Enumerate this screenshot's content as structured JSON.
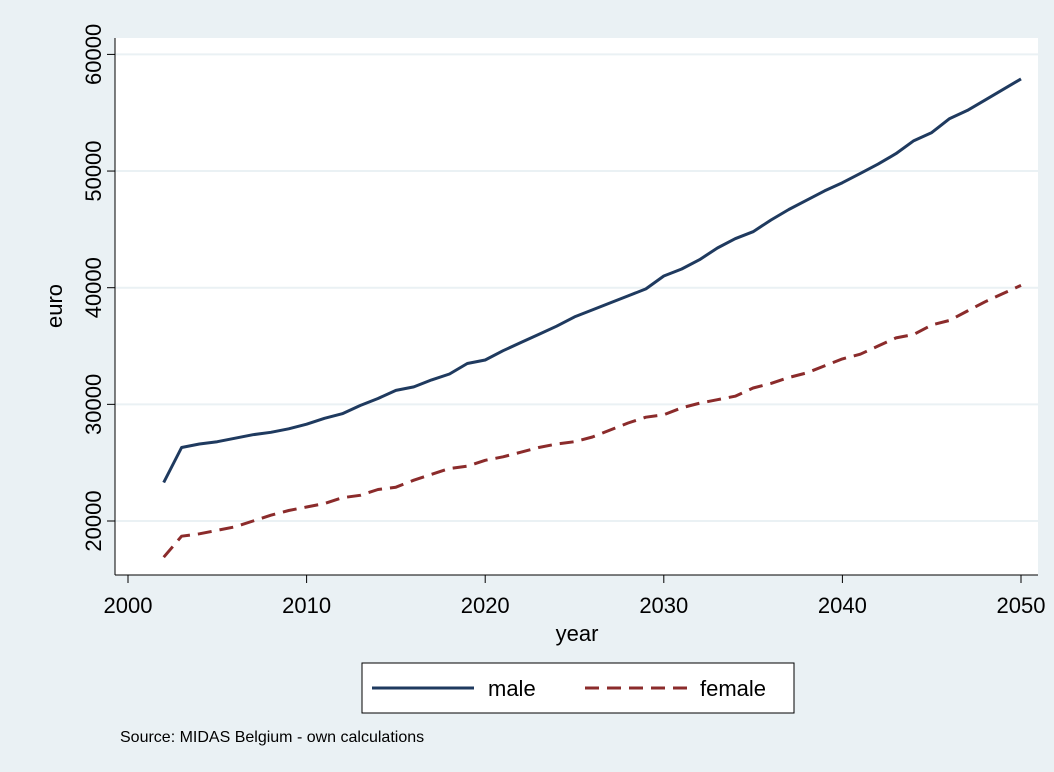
{
  "chart_data": {
    "type": "line",
    "xlabel": "year",
    "ylabel": "euro",
    "xlim": [
      2000,
      2050
    ],
    "ylim": [
      15000,
      62000
    ],
    "xticks": [
      2000,
      2010,
      2020,
      2030,
      2040,
      2050
    ],
    "yticks": [
      20000,
      30000,
      40000,
      50000,
      60000
    ],
    "grid": "horizontal",
    "legend_position": "bottom",
    "x": [
      2002,
      2003,
      2004,
      2005,
      2006,
      2007,
      2008,
      2009,
      2010,
      2011,
      2012,
      2013,
      2014,
      2015,
      2016,
      2017,
      2018,
      2019,
      2020,
      2021,
      2022,
      2023,
      2024,
      2025,
      2026,
      2027,
      2028,
      2029,
      2030,
      2031,
      2032,
      2033,
      2034,
      2035,
      2036,
      2037,
      2038,
      2039,
      2040,
      2041,
      2042,
      2043,
      2044,
      2045,
      2046,
      2047,
      2048,
      2049,
      2050
    ],
    "series": [
      {
        "name": "male",
        "color": "#1f3a5f",
        "dash": "solid",
        "values": [
          23300,
          26300,
          26600,
          26800,
          27100,
          27400,
          27600,
          27900,
          28300,
          28800,
          29200,
          29900,
          30500,
          31200,
          31500,
          32100,
          32600,
          33500,
          33800,
          34600,
          35300,
          36000,
          36700,
          37500,
          38100,
          38700,
          39300,
          39900,
          41000,
          41600,
          42400,
          43400,
          44200,
          44800,
          45800,
          46700,
          47500,
          48300,
          49000,
          49800,
          50600,
          51500,
          52600,
          53300,
          54500,
          55200,
          56100,
          57000,
          57900
        ]
      },
      {
        "name": "female",
        "color": "#8b2b2b",
        "dash": "dashed",
        "values": [
          16900,
          18700,
          18900,
          19200,
          19500,
          20000,
          20500,
          20900,
          21200,
          21500,
          22000,
          22200,
          22700,
          22900,
          23500,
          24000,
          24500,
          24700,
          25200,
          25500,
          25900,
          26300,
          26600,
          26800,
          27200,
          27800,
          28400,
          28900,
          29100,
          29700,
          30100,
          30400,
          30700,
          31400,
          31800,
          32300,
          32700,
          33300,
          33900,
          34300,
          35000,
          35700,
          36000,
          36800,
          37200,
          38000,
          38800,
          39500,
          40200
        ]
      }
    ],
    "note": "Source: MIDAS Belgium - own calculations"
  },
  "colors": {
    "outer_background": "#eaf1f4",
    "plot_background": "#ffffff",
    "grid": "#eaf1f4"
  }
}
